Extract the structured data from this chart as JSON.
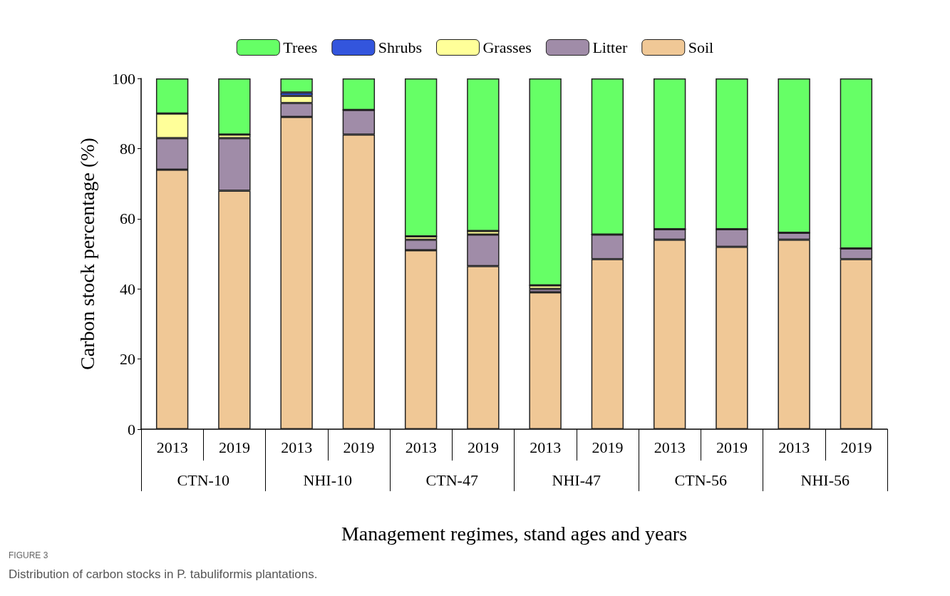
{
  "chart_data": {
    "type": "bar",
    "stacked": true,
    "categories": [
      "2013",
      "2019",
      "2013",
      "2019",
      "2013",
      "2019",
      "2013",
      "2019",
      "2013",
      "2019",
      "2013",
      "2019"
    ],
    "series": [
      {
        "name": "Soil",
        "color": "#f0c896",
        "values": [
          74,
          68,
          89,
          84,
          51,
          46.5,
          39,
          48.5,
          54,
          52,
          54,
          48.5
        ]
      },
      {
        "name": "Litter",
        "color": "#a08ca8",
        "values": [
          9,
          15,
          4,
          7,
          3,
          9,
          1,
          7,
          3,
          5,
          2,
          3
        ]
      },
      {
        "name": "Grasses",
        "color": "#ffff99",
        "values": [
          7,
          1,
          2,
          0,
          1,
          1,
          1,
          0,
          0,
          0,
          0,
          0
        ]
      },
      {
        "name": "Shrubs",
        "color": "#3355dd",
        "values": [
          0,
          0,
          1,
          0,
          0,
          0,
          0,
          0,
          0,
          0,
          0,
          0
        ]
      },
      {
        "name": "Trees",
        "color": "#66ff66",
        "values": [
          10,
          16,
          4,
          9,
          45,
          43.5,
          59,
          44.5,
          43,
          43,
          44,
          48.5
        ]
      }
    ],
    "ylim": [
      0,
      100
    ],
    "yticks": [
      0,
      20,
      40,
      60,
      80,
      100
    ],
    "xlabel": "Management regimes, stand ages and years",
    "ylabel": "Carbon stock percentage (%)",
    "legend": "top",
    "grid": false,
    "annotations": [
      "CTN-10",
      "NHI-10",
      "CTN-47",
      "NHI-47",
      "CTN-56",
      "NHI-56",
      "FIGURE 3",
      "Distribution of carbon stocks in P. tabuliformis plantations."
    ]
  }
}
